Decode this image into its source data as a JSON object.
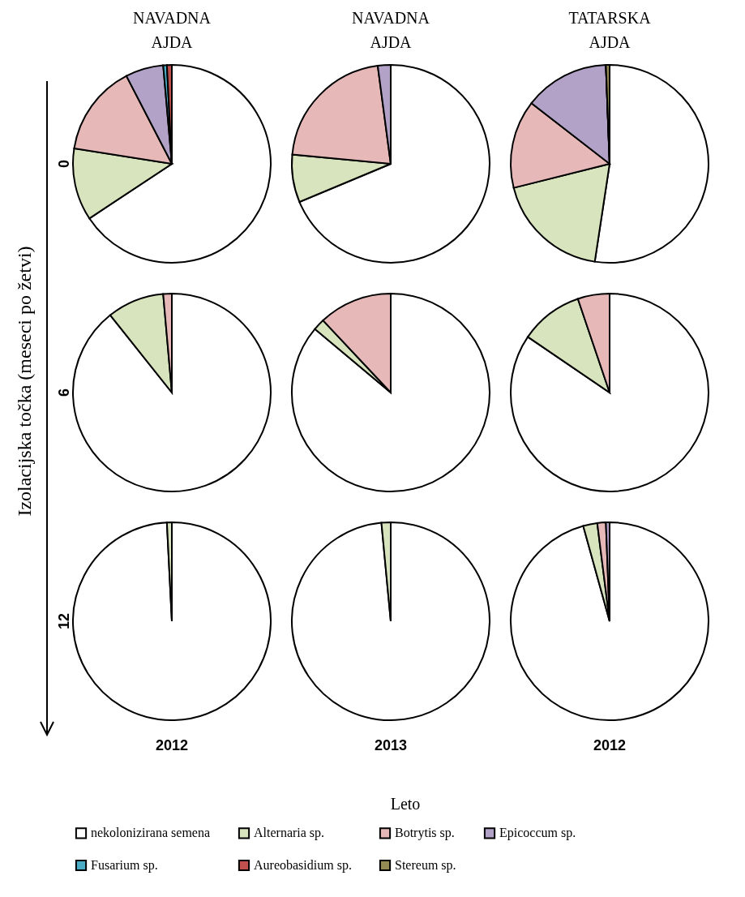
{
  "chart_data": [
    {
      "type": "pie",
      "title": "NAVADNA AJDA",
      "ylabel": "0",
      "legend": "bottom",
      "annotations": [
        "Izolacijska točka (meseci po žetvi)",
        "Leto"
      ],
      "categories": [
        "nekolonizirana semena",
        "Alternaria sp.",
        "Botrytis sp.",
        "Epicoccum sp.",
        "Fusarium sp.",
        "Aureobasidium sp.",
        "Stereum sp."
      ],
      "values": [
        65.7,
        11.8,
        14.9,
        6.2,
        0.6,
        0.8,
        0
      ],
      "colors": [
        "#ffffff",
        "#d7e4bd",
        "#e6b9b8",
        "#b3a2c7",
        "#4bacc6",
        "#c0504d",
        "#948a54"
      ]
    },
    {
      "type": "pie",
      "title": "NAVADNA AJDA",
      "values": [
        68.7,
        7.8,
        21.4,
        2.1,
        0,
        0,
        0
      ]
    },
    {
      "type": "pie",
      "title": "TATARSKA AJDA",
      "values": [
        52.4,
        18.7,
        14.4,
        13.9,
        0,
        0,
        0.6
      ]
    },
    {
      "type": "pie",
      "ylabel": "6",
      "values": [
        89.3,
        9.3,
        1.4,
        0,
        0,
        0,
        0
      ]
    },
    {
      "type": "pie",
      "values": [
        86.1,
        1.9,
        12,
        0,
        0,
        0,
        0
      ]
    },
    {
      "type": "pie",
      "values": [
        84.5,
        10.3,
        5.2,
        0,
        0,
        0,
        0
      ]
    },
    {
      "type": "pie",
      "ylabel": "12",
      "xlabel": "2012",
      "values": [
        99.2,
        0.8,
        0,
        0,
        0,
        0,
        0
      ]
    },
    {
      "type": "pie",
      "xlabel": "2013",
      "values": [
        98.5,
        1.5,
        0,
        0,
        0,
        0,
        0
      ]
    },
    {
      "type": "pie",
      "xlabel": "2012",
      "values": [
        95.7,
        2.3,
        1.4,
        0.6,
        0,
        0,
        0
      ]
    }
  ]
}
